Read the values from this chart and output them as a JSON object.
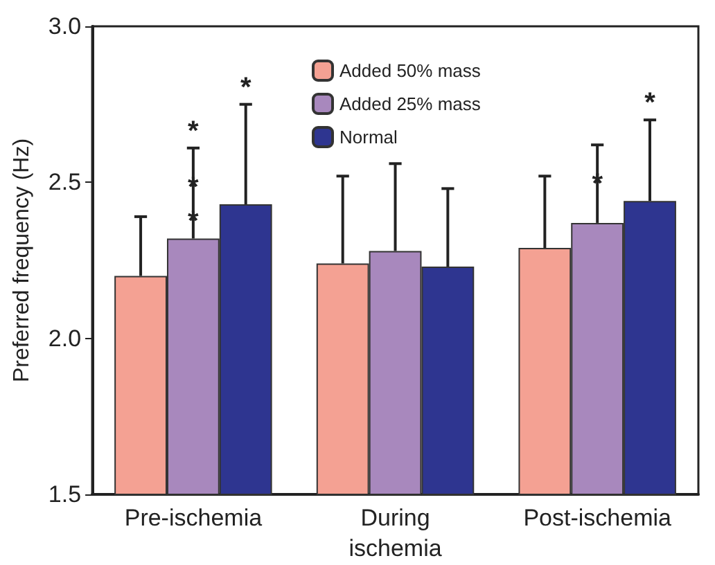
{
  "chart_data": {
    "type": "bar",
    "ylabel": "Preferred frequency (Hz)",
    "categories": [
      "Pre-ischemia",
      "During\nischemia",
      "Post-ischemia"
    ],
    "series": [
      {
        "name": "Added 50% mass",
        "color": "#f4a193",
        "values": [
          2.2,
          2.24,
          2.29
        ],
        "errors": [
          [
            2.2,
            2.39
          ],
          [
            2.24,
            2.52
          ],
          [
            2.29,
            2.52
          ]
        ]
      },
      {
        "name": "Added 25% mass",
        "color": "#a888bd",
        "values": [
          2.32,
          2.28,
          2.37
        ],
        "errors": [
          [
            2.32,
            2.61
          ],
          [
            2.28,
            2.56
          ],
          [
            2.37,
            2.62
          ]
        ]
      },
      {
        "name": "Normal",
        "color": "#2e3590",
        "values": [
          2.43,
          2.23,
          2.44
        ],
        "errors": [
          [
            2.43,
            2.75
          ],
          [
            2.23,
            2.48
          ],
          [
            2.44,
            2.7
          ]
        ]
      }
    ],
    "annotations": [
      {
        "text": "*",
        "x": "Pre-ischemia",
        "y": 2.32
      },
      {
        "text": "*",
        "x": "Pre-ischemia",
        "y": 2.43
      },
      {
        "text": "*",
        "x": "Post-ischemia",
        "y": 2.44
      }
    ],
    "ylim": [
      1.5,
      3.0
    ],
    "yticks": [
      {
        "value": 1.5,
        "label": "1.5"
      },
      {
        "value": 2,
        "label": "2.0"
      },
      {
        "value": 2.5,
        "label": "2.5"
      },
      {
        "value": 3,
        "label": "3.0"
      }
    ],
    "grid": false,
    "legend": "top"
  }
}
